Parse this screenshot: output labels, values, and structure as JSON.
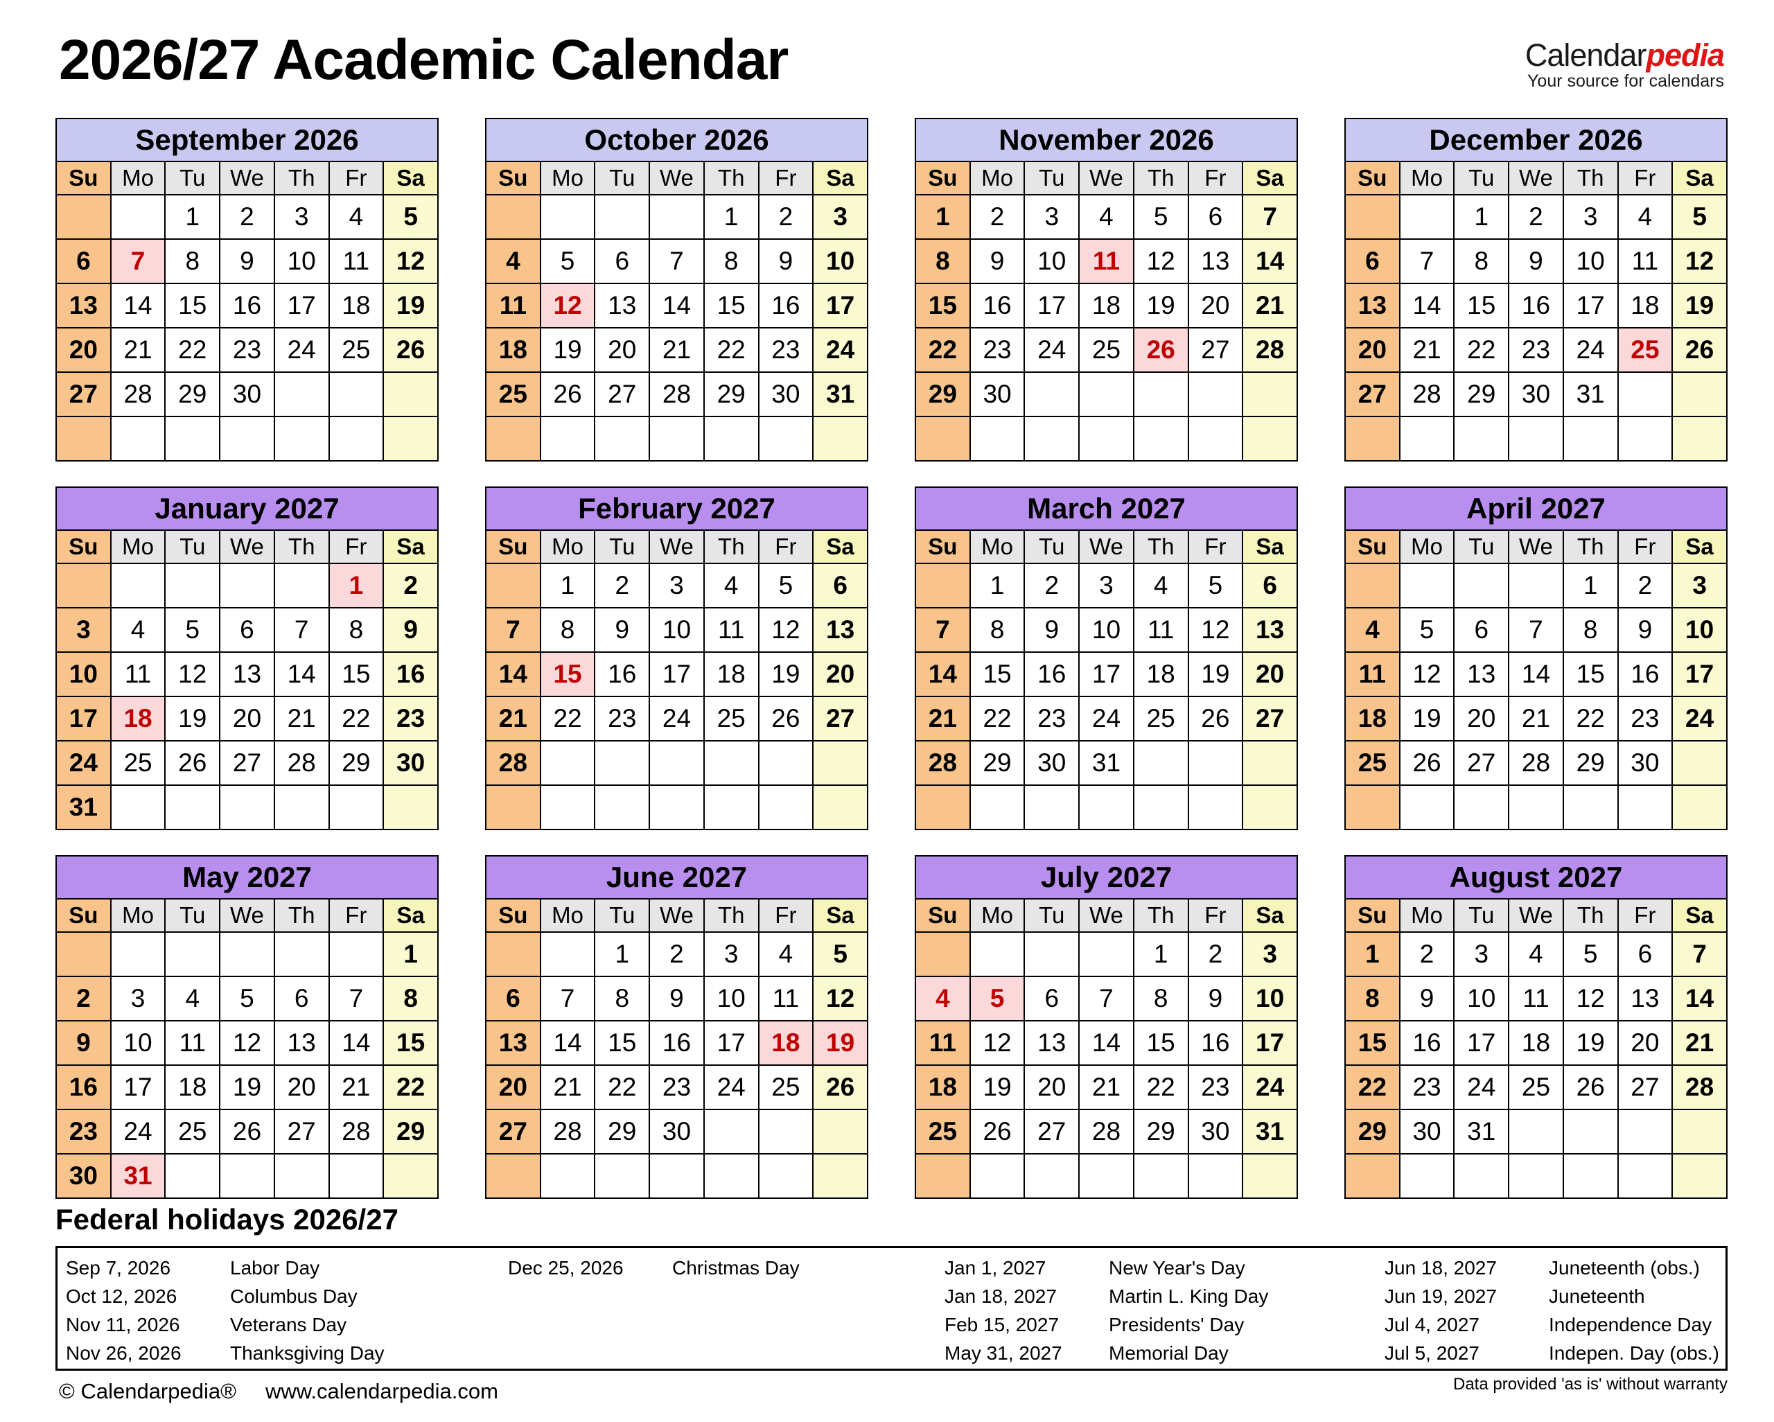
{
  "page": {
    "title": "2026/27 Academic Calendar",
    "logo": {
      "part_black": "Calendar",
      "part_red": "pedia",
      "tagline": "Your source for calendars"
    },
    "holidays_heading": "Federal holidays 2026/27",
    "footer": {
      "copyright": "© Calendarpedia®",
      "website": "www.calendarpedia.com",
      "disclaimer": "Data provided 'as is' without warranty"
    }
  },
  "weekdays": [
    "Su",
    "Mo",
    "Tu",
    "We",
    "Th",
    "Fr",
    "Sa"
  ],
  "colors": {
    "header_2026": "#C8C8F0",
    "header_2027": "#B88FEF",
    "sunday": "#F9C38C",
    "weekday_gray": "#E6E6E6",
    "saturday_header": "#F5F5BC",
    "saturday": "#FAFAD0",
    "holiday_bg": "#FBD8DA",
    "holiday_text": "#C00000",
    "logo_red": "#E01414"
  },
  "months": [
    {
      "name": "September 2026",
      "holidays": [
        7
      ],
      "weeks": [
        [
          null,
          null,
          1,
          2,
          3,
          4,
          5
        ],
        [
          6,
          7,
          8,
          9,
          10,
          11,
          12
        ],
        [
          13,
          14,
          15,
          16,
          17,
          18,
          19
        ],
        [
          20,
          21,
          22,
          23,
          24,
          25,
          26
        ],
        [
          27,
          28,
          29,
          30,
          null,
          null,
          null
        ],
        [
          null,
          null,
          null,
          null,
          null,
          null,
          null
        ]
      ]
    },
    {
      "name": "October 2026",
      "holidays": [
        12
      ],
      "weeks": [
        [
          null,
          null,
          null,
          null,
          1,
          2,
          3
        ],
        [
          4,
          5,
          6,
          7,
          8,
          9,
          10
        ],
        [
          11,
          12,
          13,
          14,
          15,
          16,
          17
        ],
        [
          18,
          19,
          20,
          21,
          22,
          23,
          24
        ],
        [
          25,
          26,
          27,
          28,
          29,
          30,
          31
        ],
        [
          null,
          null,
          null,
          null,
          null,
          null,
          null
        ]
      ]
    },
    {
      "name": "November 2026",
      "holidays": [
        11,
        26
      ],
      "weeks": [
        [
          1,
          2,
          3,
          4,
          5,
          6,
          7
        ],
        [
          8,
          9,
          10,
          11,
          12,
          13,
          14
        ],
        [
          15,
          16,
          17,
          18,
          19,
          20,
          21
        ],
        [
          22,
          23,
          24,
          25,
          26,
          27,
          28
        ],
        [
          29,
          30,
          null,
          null,
          null,
          null,
          null
        ],
        [
          null,
          null,
          null,
          null,
          null,
          null,
          null
        ]
      ]
    },
    {
      "name": "December 2026",
      "holidays": [
        25
      ],
      "weeks": [
        [
          null,
          null,
          1,
          2,
          3,
          4,
          5
        ],
        [
          6,
          7,
          8,
          9,
          10,
          11,
          12
        ],
        [
          13,
          14,
          15,
          16,
          17,
          18,
          19
        ],
        [
          20,
          21,
          22,
          23,
          24,
          25,
          26
        ],
        [
          27,
          28,
          29,
          30,
          31,
          null,
          null
        ],
        [
          null,
          null,
          null,
          null,
          null,
          null,
          null
        ]
      ]
    },
    {
      "name": "January 2027",
      "holidays": [
        1,
        18
      ],
      "weeks": [
        [
          null,
          null,
          null,
          null,
          null,
          1,
          2
        ],
        [
          3,
          4,
          5,
          6,
          7,
          8,
          9
        ],
        [
          10,
          11,
          12,
          13,
          14,
          15,
          16
        ],
        [
          17,
          18,
          19,
          20,
          21,
          22,
          23
        ],
        [
          24,
          25,
          26,
          27,
          28,
          29,
          30
        ],
        [
          31,
          null,
          null,
          null,
          null,
          null,
          null
        ]
      ]
    },
    {
      "name": "February 2027",
      "holidays": [
        15
      ],
      "weeks": [
        [
          null,
          1,
          2,
          3,
          4,
          5,
          6
        ],
        [
          7,
          8,
          9,
          10,
          11,
          12,
          13
        ],
        [
          14,
          15,
          16,
          17,
          18,
          19,
          20
        ],
        [
          21,
          22,
          23,
          24,
          25,
          26,
          27
        ],
        [
          28,
          null,
          null,
          null,
          null,
          null,
          null
        ],
        [
          null,
          null,
          null,
          null,
          null,
          null,
          null
        ]
      ]
    },
    {
      "name": "March 2027",
      "holidays": [],
      "weeks": [
        [
          null,
          1,
          2,
          3,
          4,
          5,
          6
        ],
        [
          7,
          8,
          9,
          10,
          11,
          12,
          13
        ],
        [
          14,
          15,
          16,
          17,
          18,
          19,
          20
        ],
        [
          21,
          22,
          23,
          24,
          25,
          26,
          27
        ],
        [
          28,
          29,
          30,
          31,
          null,
          null,
          null
        ],
        [
          null,
          null,
          null,
          null,
          null,
          null,
          null
        ]
      ]
    },
    {
      "name": "April 2027",
      "holidays": [],
      "weeks": [
        [
          null,
          null,
          null,
          null,
          1,
          2,
          3
        ],
        [
          4,
          5,
          6,
          7,
          8,
          9,
          10
        ],
        [
          11,
          12,
          13,
          14,
          15,
          16,
          17
        ],
        [
          18,
          19,
          20,
          21,
          22,
          23,
          24
        ],
        [
          25,
          26,
          27,
          28,
          29,
          30,
          null
        ],
        [
          null,
          null,
          null,
          null,
          null,
          null,
          null
        ]
      ]
    },
    {
      "name": "May 2027",
      "holidays": [
        31
      ],
      "weeks": [
        [
          null,
          null,
          null,
          null,
          null,
          null,
          1
        ],
        [
          2,
          3,
          4,
          5,
          6,
          7,
          8
        ],
        [
          9,
          10,
          11,
          12,
          13,
          14,
          15
        ],
        [
          16,
          17,
          18,
          19,
          20,
          21,
          22
        ],
        [
          23,
          24,
          25,
          26,
          27,
          28,
          29
        ],
        [
          30,
          31,
          null,
          null,
          null,
          null,
          null
        ]
      ]
    },
    {
      "name": "June 2027",
      "holidays": [
        18,
        19
      ],
      "weeks": [
        [
          null,
          null,
          1,
          2,
          3,
          4,
          5
        ],
        [
          6,
          7,
          8,
          9,
          10,
          11,
          12
        ],
        [
          13,
          14,
          15,
          16,
          17,
          18,
          19
        ],
        [
          20,
          21,
          22,
          23,
          24,
          25,
          26
        ],
        [
          27,
          28,
          29,
          30,
          null,
          null,
          null
        ],
        [
          null,
          null,
          null,
          null,
          null,
          null,
          null
        ]
      ]
    },
    {
      "name": "July 2027",
      "holidays": [
        4,
        5
      ],
      "weeks": [
        [
          null,
          null,
          null,
          null,
          1,
          2,
          3
        ],
        [
          4,
          5,
          6,
          7,
          8,
          9,
          10
        ],
        [
          11,
          12,
          13,
          14,
          15,
          16,
          17
        ],
        [
          18,
          19,
          20,
          21,
          22,
          23,
          24
        ],
        [
          25,
          26,
          27,
          28,
          29,
          30,
          31
        ],
        [
          null,
          null,
          null,
          null,
          null,
          null,
          null
        ]
      ]
    },
    {
      "name": "August 2027",
      "holidays": [],
      "weeks": [
        [
          1,
          2,
          3,
          4,
          5,
          6,
          7
        ],
        [
          8,
          9,
          10,
          11,
          12,
          13,
          14
        ],
        [
          15,
          16,
          17,
          18,
          19,
          20,
          21
        ],
        [
          22,
          23,
          24,
          25,
          26,
          27,
          28
        ],
        [
          29,
          30,
          31,
          null,
          null,
          null,
          null
        ],
        [
          null,
          null,
          null,
          null,
          null,
          null,
          null
        ]
      ]
    }
  ],
  "holiday_groups": [
    [
      {
        "date": "Sep 7, 2026",
        "name": "Labor Day"
      },
      {
        "date": "Oct 12, 2026",
        "name": "Columbus Day"
      },
      {
        "date": "Nov 11, 2026",
        "name": "Veterans Day"
      },
      {
        "date": "Nov 26, 2026",
        "name": "Thanksgiving Day"
      }
    ],
    [
      {
        "date": "Dec 25, 2026",
        "name": "Christmas Day"
      }
    ],
    [
      {
        "date": "Jan 1, 2027",
        "name": "New Year's Day"
      },
      {
        "date": "Jan 18, 2027",
        "name": "Martin L. King Day"
      },
      {
        "date": "Feb 15, 2027",
        "name": "Presidents' Day"
      },
      {
        "date": "May 31, 2027",
        "name": "Memorial Day"
      }
    ],
    [
      {
        "date": "Jun 18, 2027",
        "name": "Juneteenth (obs.)"
      },
      {
        "date": "Jun 19, 2027",
        "name": "Juneteenth"
      },
      {
        "date": "Jul 4, 2027",
        "name": "Independence Day"
      },
      {
        "date": "Jul 5, 2027",
        "name": "Indepen. Day (obs.)"
      }
    ]
  ]
}
